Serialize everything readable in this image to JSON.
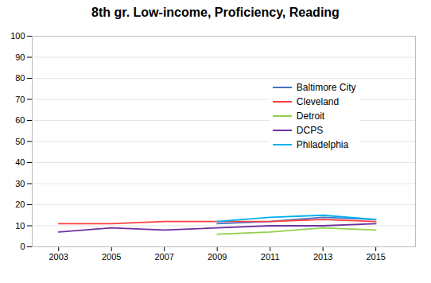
{
  "chart_data": {
    "type": "line",
    "title": "8th gr. Low-income, Proficiency, Reading",
    "x": [
      2003,
      2005,
      2007,
      2009,
      2011,
      2013,
      2015
    ],
    "series": [
      {
        "name": "Baltimore City",
        "color": "#4472C4",
        "values": [
          null,
          null,
          null,
          11,
          12,
          14,
          13
        ]
      },
      {
        "name": "Cleveland",
        "color": "#FF4040",
        "values": [
          11,
          11,
          12,
          12,
          12,
          13,
          12
        ]
      },
      {
        "name": "Detroit",
        "color": "#92D050",
        "values": [
          null,
          null,
          null,
          6,
          7,
          9,
          8
        ]
      },
      {
        "name": "DCPS",
        "color": "#7030A0",
        "values": [
          7,
          9,
          8,
          null,
          10,
          10,
          11
        ]
      },
      {
        "name": "Philadelphia",
        "color": "#00B0F0",
        "values": [
          null,
          null,
          null,
          12,
          14,
          15,
          13
        ]
      }
    ],
    "xlim": [
      2002,
      2016.5
    ],
    "xticks": [
      2003,
      2005,
      2007,
      2009,
      2011,
      2013,
      2015
    ],
    "ylim": [
      0,
      100
    ],
    "yticks": [
      0,
      10,
      20,
      30,
      40,
      50,
      60,
      70,
      80,
      90,
      100
    ],
    "grid": true,
    "legend": "right"
  }
}
